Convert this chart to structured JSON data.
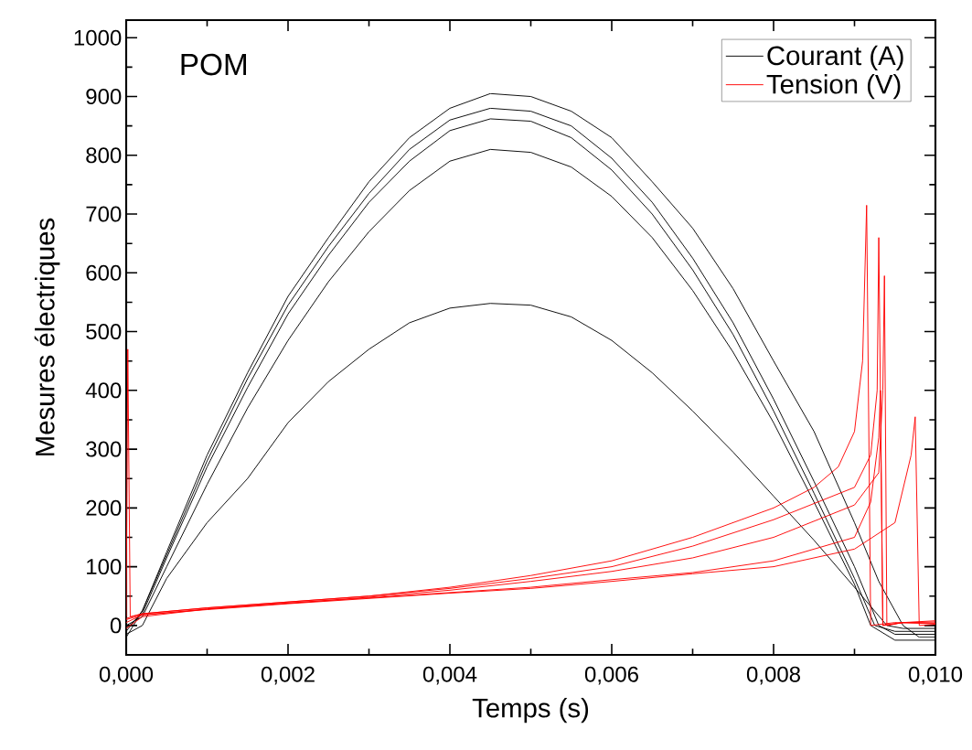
{
  "chart_data": {
    "type": "line",
    "xlabel": "Temps (s)",
    "ylabel": "Mesures électriques",
    "annotations": [
      "POM"
    ],
    "xlim": [
      0,
      0.01
    ],
    "ylim": [
      -50,
      1030
    ],
    "xticks": [
      {
        "value": 0,
        "label": "0,000"
      },
      {
        "value": 0.001,
        "label": null
      },
      {
        "value": 0.002,
        "label": "0,002"
      },
      {
        "value": 0.003,
        "label": null
      },
      {
        "value": 0.004,
        "label": "0,004"
      },
      {
        "value": 0.005,
        "label": null
      },
      {
        "value": 0.006,
        "label": "0,006"
      },
      {
        "value": 0.007,
        "label": null
      },
      {
        "value": 0.008,
        "label": "0,008"
      },
      {
        "value": 0.009,
        "label": null
      },
      {
        "value": 0.01,
        "label": "0,010"
      }
    ],
    "yticks": [
      0,
      {
        "value": 50,
        "label": null
      },
      100,
      {
        "value": 150,
        "label": null
      },
      200,
      {
        "value": 250,
        "label": null
      },
      300,
      {
        "value": 350,
        "label": null
      },
      400,
      {
        "value": 450,
        "label": null
      },
      500,
      {
        "value": 550,
        "label": null
      },
      600,
      {
        "value": 650,
        "label": null
      },
      700,
      {
        "value": 750,
        "label": null
      },
      800,
      {
        "value": 850,
        "label": null
      },
      900,
      {
        "value": 950,
        "label": null
      },
      1000
    ],
    "grid": false,
    "legend": "top right",
    "marker": "none",
    "line_style": "solid",
    "series": [
      {
        "name": "Courant (A)",
        "color": "#000000",
        "x": [
          0,
          0.0002,
          0.0005,
          0.001,
          0.0015,
          0.002,
          0.0025,
          0.003,
          0.0035,
          0.004,
          0.0045,
          0.005,
          0.0055,
          0.006,
          0.0065,
          0.007,
          0.0075,
          0.008,
          0.0085,
          0.009,
          0.0093,
          0.0096,
          0.0098,
          0.01
        ],
        "values": [
          -20,
          25,
          125,
          290,
          430,
          560,
          660,
          755,
          830,
          880,
          905,
          900,
          875,
          830,
          755,
          676,
          573,
          450,
          330,
          175,
          75,
          0,
          -20,
          -20
        ]
      },
      {
        "color": "#000000",
        "x": [
          0,
          0.0002,
          0.0005,
          0.001,
          0.0015,
          0.002,
          0.0025,
          0.003,
          0.0035,
          0.004,
          0.0045,
          0.005,
          0.0055,
          0.006,
          0.0065,
          0.007,
          0.0075,
          0.008,
          0.0085,
          0.009,
          0.0093,
          0.0095,
          0.01
        ],
        "values": [
          -10,
          25,
          120,
          280,
          420,
          545,
          645,
          735,
          810,
          860,
          880,
          875,
          850,
          795,
          720,
          625,
          515,
          385,
          245,
          100,
          0,
          -15,
          -15
        ]
      },
      {
        "color": "#000000",
        "x": [
          0,
          0.0002,
          0.0005,
          0.001,
          0.0015,
          0.002,
          0.0025,
          0.003,
          0.0035,
          0.004,
          0.0045,
          0.005,
          0.0055,
          0.006,
          0.0065,
          0.007,
          0.0075,
          0.008,
          0.0085,
          0.009,
          0.00925,
          0.0095,
          0.01
        ],
        "values": [
          -5,
          20,
          115,
          270,
          405,
          530,
          630,
          720,
          790,
          842,
          862,
          858,
          830,
          775,
          700,
          605,
          495,
          365,
          225,
          80,
          0,
          -10,
          -10
        ]
      },
      {
        "color": "#000000",
        "x": [
          0,
          0.0002,
          0.0005,
          0.001,
          0.0015,
          0.002,
          0.0025,
          0.003,
          0.0035,
          0.004,
          0.0045,
          0.005,
          0.0055,
          0.006,
          0.0065,
          0.007,
          0.0075,
          0.008,
          0.0085,
          0.009,
          0.0092,
          0.0095,
          0.01
        ],
        "values": [
          0,
          15,
          100,
          240,
          370,
          485,
          585,
          670,
          740,
          790,
          810,
          805,
          780,
          730,
          660,
          570,
          465,
          345,
          210,
          70,
          0,
          -25,
          -25
        ]
      },
      {
        "color": "#000000",
        "x": [
          0,
          0.0002,
          0.0005,
          0.001,
          0.0015,
          0.002,
          0.0025,
          0.003,
          0.0035,
          0.004,
          0.0045,
          0.005,
          0.0055,
          0.006,
          0.0065,
          0.007,
          0.0075,
          0.008,
          0.0085,
          0.009,
          0.0094,
          0.0096,
          0.01
        ],
        "values": [
          -15,
          0,
          80,
          175,
          250,
          345,
          415,
          470,
          515,
          540,
          548,
          545,
          525,
          485,
          430,
          365,
          295,
          220,
          145,
          65,
          0,
          -5,
          -5
        ]
      },
      {
        "name": "Tension (V)",
        "color": "#ff0000",
        "x": [
          0,
          2e-05,
          5e-05,
          0.0002,
          0.001,
          0.002,
          0.003,
          0.004,
          0.005,
          0.006,
          0.007,
          0.008,
          0.0085,
          0.0088,
          0.009,
          0.0091,
          0.00915,
          0.0092,
          0.0095,
          0.01
        ],
        "values": [
          15,
          470,
          15,
          20,
          30,
          40,
          50,
          65,
          85,
          110,
          150,
          200,
          235,
          270,
          330,
          450,
          715,
          0,
          5,
          3
        ]
      },
      {
        "color": "#ff0000",
        "x": [
          0,
          0.0002,
          0.001,
          0.002,
          0.003,
          0.004,
          0.005,
          0.006,
          0.007,
          0.008,
          0.009,
          0.0092,
          0.00928,
          0.0093,
          0.00935,
          0.0096,
          0.01
        ],
        "values": [
          12,
          20,
          30,
          40,
          50,
          63,
          80,
          100,
          135,
          180,
          235,
          290,
          400,
          660,
          0,
          5,
          6
        ]
      },
      {
        "color": "#ff0000",
        "x": [
          0,
          0.0002,
          0.001,
          0.002,
          0.003,
          0.004,
          0.005,
          0.006,
          0.007,
          0.008,
          0.009,
          0.0093,
          0.00935,
          0.00937,
          0.0094,
          0.0096,
          0.01
        ],
        "values": [
          10,
          18,
          28,
          38,
          48,
          60,
          75,
          92,
          115,
          150,
          205,
          260,
          400,
          595,
          0,
          5,
          4
        ]
      },
      {
        "color": "#ff0000",
        "x": [
          0,
          0.0002,
          0.001,
          0.002,
          0.003,
          0.004,
          0.005,
          0.006,
          0.007,
          0.008,
          0.009,
          0.0092,
          0.0093,
          0.00932,
          0.00935,
          0.0096,
          0.01
        ],
        "values": [
          -5,
          15,
          28,
          38,
          47,
          56,
          65,
          78,
          90,
          110,
          150,
          210,
          320,
          400,
          0,
          5,
          8
        ]
      },
      {
        "color": "#ff0000",
        "x": [
          0,
          0.0002,
          0.001,
          0.002,
          0.003,
          0.004,
          0.005,
          0.006,
          0.007,
          0.008,
          0.009,
          0.0095,
          0.0097,
          0.00975,
          0.0098,
          0.01
        ],
        "values": [
          5,
          18,
          27,
          37,
          46,
          55,
          63,
          75,
          88,
          100,
          130,
          175,
          290,
          355,
          0,
          2
        ]
      }
    ]
  }
}
